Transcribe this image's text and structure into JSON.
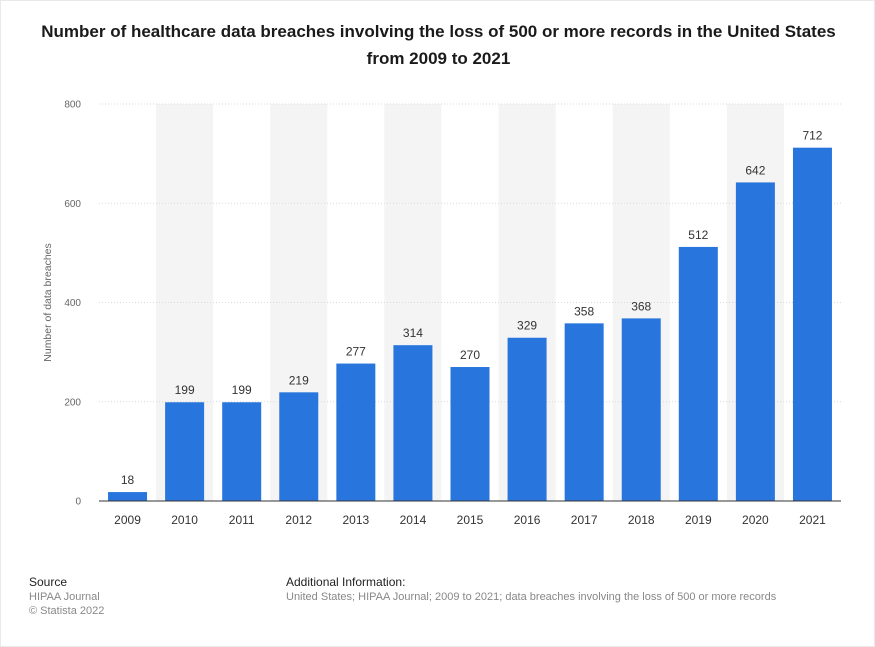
{
  "chart_data": {
    "type": "bar",
    "title": "Number of healthcare data breaches involving the loss of 500 or more records in the United States from 2009 to 2021",
    "xlabel": "",
    "ylabel": "Number of data breaches",
    "categories": [
      "2009",
      "2010",
      "2011",
      "2012",
      "2013",
      "2014",
      "2015",
      "2016",
      "2017",
      "2018",
      "2019",
      "2020",
      "2021"
    ],
    "values": [
      18,
      199,
      199,
      219,
      277,
      314,
      270,
      329,
      358,
      368,
      512,
      642,
      712
    ],
    "ylim": [
      0,
      800
    ],
    "yticks": [
      0,
      200,
      400,
      600,
      800
    ],
    "bar_color": "#2876dd",
    "alternate_band_color": "#f4f4f4",
    "grid": true,
    "data_labels": true
  },
  "footer": {
    "source_heading": "Source",
    "source_lines": [
      "HIPAA Journal",
      "© Statista 2022"
    ],
    "info_heading": "Additional Information:",
    "info_text": "United States; HIPAA Journal; 2009 to 2021; data breaches involving the loss of 500 or more records"
  }
}
